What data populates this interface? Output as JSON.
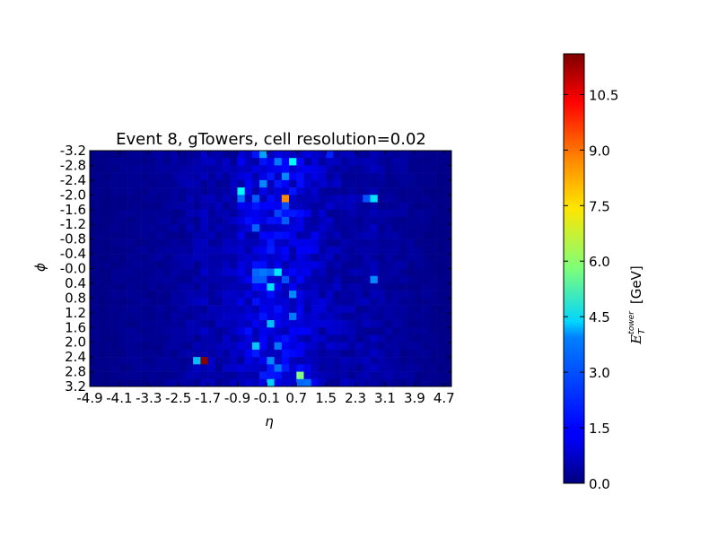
{
  "chart_data": {
    "type": "heatmap",
    "title": "Event 8, gTowers, cell resolution=0.02",
    "xlabel": "η",
    "ylabel": "ϕ",
    "colorbar_label_main": "E",
    "colorbar_label_sub": "T",
    "colorbar_label_sup": "tower",
    "colorbar_label_unit": "[GeV]",
    "colormap": "jet",
    "vmin": 0.0,
    "vmax": 11.6,
    "x_range": [
      -4.9,
      4.9
    ],
    "y_range": [
      -3.2,
      3.2
    ],
    "n_cols": 49,
    "n_rows": 32,
    "x_tick_labels": [
      "-4.9",
      "-4.1",
      "-3.3",
      "-2.5",
      "-1.7",
      "-0.9",
      "-0.1",
      "0.7",
      "1.5",
      "2.3",
      "3.1",
      "3.9",
      "4.7"
    ],
    "y_tick_labels": [
      "-3.2",
      "-2.8",
      "-2.4",
      "-2.0",
      "-1.6",
      "-1.2",
      "-0.8",
      "-0.4",
      "-0.0",
      "0.4",
      "0.8",
      "1.2",
      "1.6",
      "2.0",
      "2.4",
      "2.8",
      "3.2"
    ],
    "colorbar_ticks": [
      "0.0",
      "1.5",
      "3.0",
      "4.5",
      "6.0",
      "7.5",
      "9.0",
      "10.5"
    ],
    "colorbar_tick_values": [
      0.0,
      1.5,
      3.0,
      4.5,
      6.0,
      7.5,
      9.0,
      10.5
    ],
    "column_baseline_ET": [
      0.1,
      0.1,
      0.1,
      0.15,
      0.15,
      0.2,
      0.2,
      0.2,
      0.2,
      0.25,
      0.25,
      0.3,
      0.35,
      0.4,
      0.5,
      0.55,
      0.5,
      0.5,
      0.55,
      0.6,
      0.9,
      1.0,
      1.1,
      1.1,
      1.2,
      1.2,
      1.1,
      1.1,
      1.0,
      0.9,
      0.8,
      0.7,
      0.6,
      0.55,
      0.5,
      0.5,
      0.45,
      0.45,
      0.5,
      0.4,
      0.35,
      0.3,
      0.3,
      0.25,
      0.2,
      0.2,
      0.15,
      0.1,
      0.1
    ],
    "hot_cells": [
      {
        "col": 15,
        "row": 28,
        "value": 11.5
      },
      {
        "col": 14,
        "row": 28,
        "value": 3.6
      },
      {
        "col": 26,
        "row": 6,
        "value": 8.6
      },
      {
        "col": 28,
        "row": 30,
        "value": 5.8
      },
      {
        "col": 27,
        "row": 1,
        "value": 4.3
      },
      {
        "col": 20,
        "row": 5,
        "value": 4.3
      },
      {
        "col": 38,
        "row": 6,
        "value": 4.0
      },
      {
        "col": 37,
        "row": 6,
        "value": 2.4
      },
      {
        "col": 23,
        "row": 0,
        "value": 3.3
      },
      {
        "col": 25,
        "row": 16,
        "value": 4.1
      },
      {
        "col": 24,
        "row": 18,
        "value": 4.0
      },
      {
        "col": 38,
        "row": 17,
        "value": 3.0
      },
      {
        "col": 24,
        "row": 23,
        "value": 3.6
      },
      {
        "col": 22,
        "row": 26,
        "value": 3.7
      },
      {
        "col": 24,
        "row": 31,
        "value": 3.8
      },
      {
        "col": 29,
        "row": 31,
        "value": 2.7
      },
      {
        "col": 28,
        "row": 31,
        "value": 2.6
      },
      {
        "col": 26,
        "row": 3,
        "value": 3.0
      },
      {
        "col": 25,
        "row": 1,
        "value": 2.8
      },
      {
        "col": 23,
        "row": 4,
        "value": 3.0
      },
      {
        "col": 20,
        "row": 6,
        "value": 2.7
      },
      {
        "col": 22,
        "row": 6,
        "value": 2.5
      },
      {
        "col": 27,
        "row": 19,
        "value": 3.0
      },
      {
        "col": 27,
        "row": 22,
        "value": 2.8
      },
      {
        "col": 24,
        "row": 28,
        "value": 3.0
      },
      {
        "col": 25,
        "row": 29,
        "value": 2.7
      },
      {
        "col": 25,
        "row": 26,
        "value": 2.8
      },
      {
        "col": 22,
        "row": 16,
        "value": 2.6
      },
      {
        "col": 23,
        "row": 16,
        "value": 2.8
      },
      {
        "col": 24,
        "row": 16,
        "value": 2.6
      },
      {
        "col": 22,
        "row": 17,
        "value": 2.5
      },
      {
        "col": 23,
        "row": 17,
        "value": 2.5
      },
      {
        "col": 26,
        "row": 17,
        "value": 2.4
      },
      {
        "col": 26,
        "row": 9,
        "value": 2.5
      },
      {
        "col": 22,
        "row": 10,
        "value": 2.6
      },
      {
        "col": 26,
        "row": 7,
        "value": 2.3
      },
      {
        "col": 25,
        "row": 8,
        "value": 2.2
      },
      {
        "col": 32,
        "row": 0,
        "value": 1.8
      }
    ]
  }
}
